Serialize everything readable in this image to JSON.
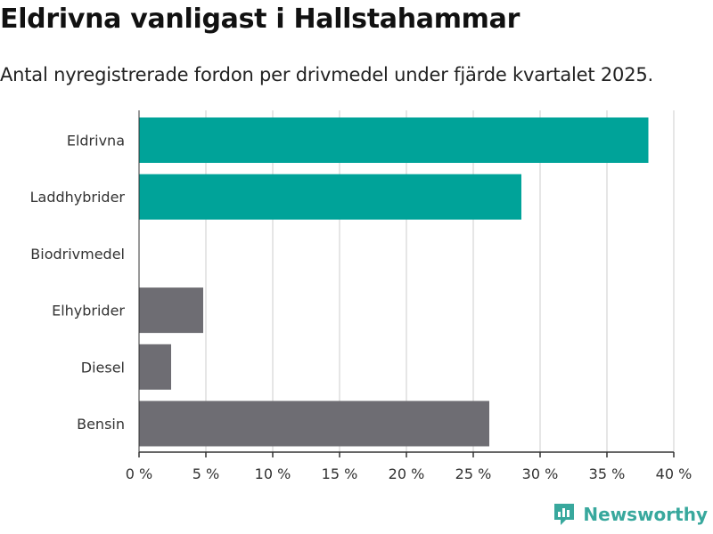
{
  "header": {
    "title": "Eldrivna vanligast i Hallstahammar",
    "subtitle": "Antal nyregistrerade fordon per drivmedel under fjärde kvartalet 2025."
  },
  "brand": {
    "name": "Newsworthy",
    "icon": "newsworthy-logo-icon"
  },
  "colors": {
    "electric": "#00a399",
    "other": "#6e6d73",
    "grid": "#dddddd",
    "axis": "#333333",
    "text": "#333333"
  },
  "chart_data": {
    "type": "bar",
    "orientation": "horizontal",
    "categories": [
      "Eldrivna",
      "Laddhybrider",
      "Biodrivmedel",
      "Elhybrider",
      "Diesel",
      "Bensin"
    ],
    "values": [
      38.1,
      28.6,
      0,
      4.8,
      2.4,
      26.2
    ],
    "bar_color_groups": [
      "electric",
      "electric",
      "electric",
      "other",
      "other",
      "other"
    ],
    "unit": "%",
    "xlim": [
      0,
      40
    ],
    "ticks": [
      0,
      5,
      10,
      15,
      20,
      25,
      30,
      35,
      40
    ],
    "tick_labels": [
      "0 %",
      "5 %",
      "10 %",
      "15 %",
      "20 %",
      "25 %",
      "30 %",
      "35 %",
      "40 %"
    ],
    "grid": true
  }
}
